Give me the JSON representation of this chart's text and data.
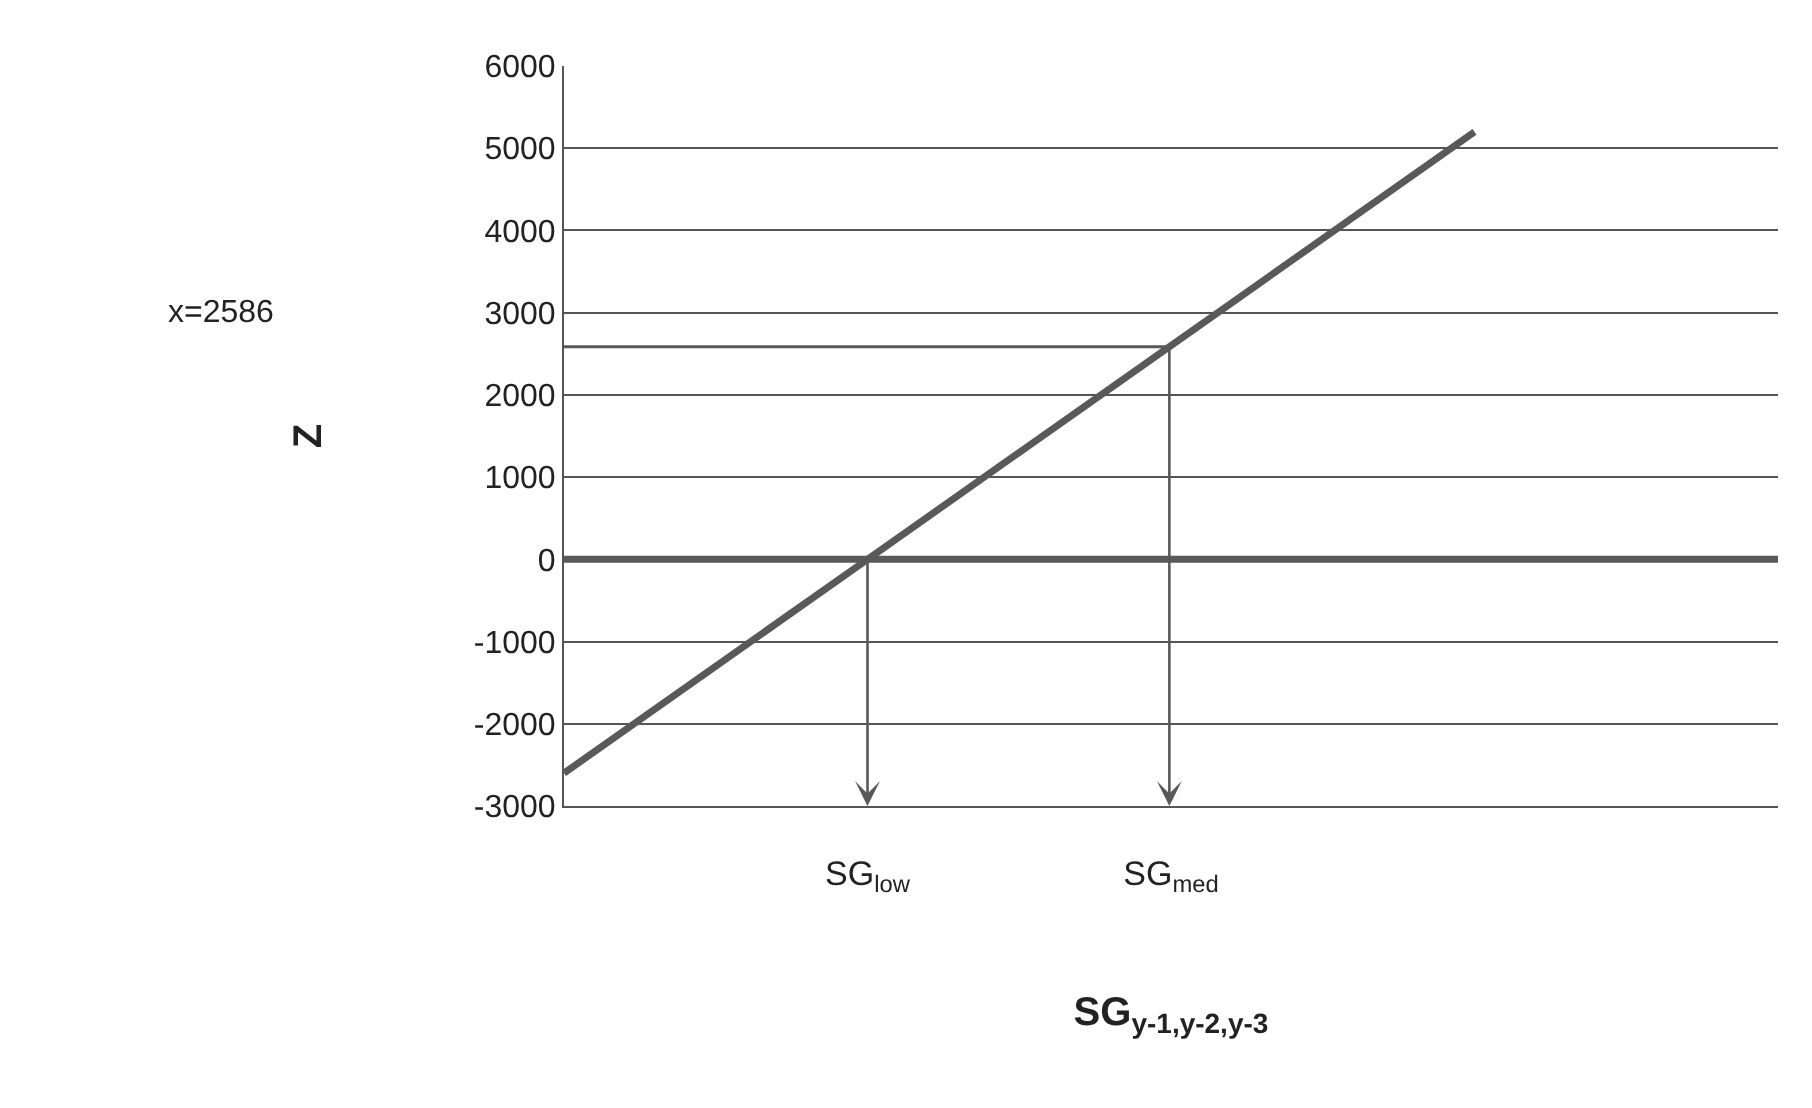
{
  "chart_data": {
    "type": "line",
    "xlabel": "SG$_{y-1,y-2,y-3}$",
    "ylabel": "Z",
    "categories": [
      null,
      "SG$_{low}$",
      "SG$_{med}$",
      null,
      null
    ],
    "series": [
      {
        "color": "#595959",
        "values": [
          -2600,
          0,
          2600,
          5200,
          null
        ]
      }
    ],
    "ref_lines": [
      {
        "axis": "y",
        "value": 0,
        "color": "#595959"
      },
      {
        "axis": "y",
        "value": 2586,
        "color": "#595959"
      }
    ],
    "annotations": [
      "x=2586"
    ],
    "ylim": [
      -3000,
      6000
    ],
    "yticks": [
      -3000,
      -2000,
      -1000,
      0,
      1000,
      2000,
      3000,
      4000,
      5000,
      6000
    ],
    "grid": "y",
    "marker": "none",
    "line_style": "solid"
  }
}
